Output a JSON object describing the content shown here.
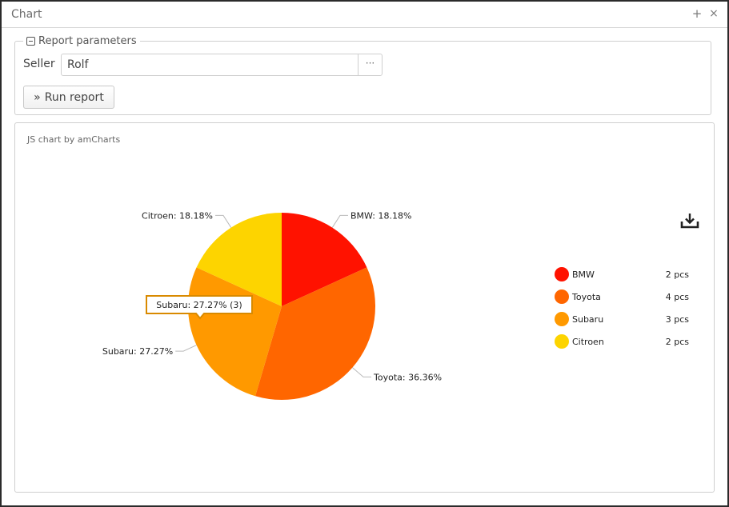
{
  "window": {
    "title": "Chart",
    "plus_glyph": "+",
    "close_glyph": "×"
  },
  "params": {
    "legend": "Report parameters",
    "seller_label": "Seller",
    "seller_value": "Rolf",
    "lookup_glyph": "···",
    "run_icon": "»",
    "run_label": "Run report"
  },
  "chart": {
    "credit": "JS chart by amCharts",
    "download_icon": "download-icon"
  },
  "chart_data": {
    "type": "pie",
    "categories": [
      "BMW",
      "Toyota",
      "Subaru",
      "Citroen"
    ],
    "values": [
      2,
      4,
      3,
      2
    ],
    "percents": [
      18.18,
      36.36,
      27.27,
      18.18
    ],
    "slice_labels": [
      "BMW: 18.18%",
      "Toyota: 36.36%",
      "Subaru: 27.27%",
      "Citroen: 18.18%"
    ],
    "colors": [
      "#ff1200",
      "#ff6600",
      "#ff9900",
      "#fdd400"
    ],
    "legend_values": [
      "2 pcs",
      "4 pcs",
      "3 pcs",
      "2 pcs"
    ],
    "legend_position": "right",
    "tooltip": "Subaru: 27.27% (3)",
    "title": "",
    "xlabel": "",
    "ylabel": ""
  }
}
